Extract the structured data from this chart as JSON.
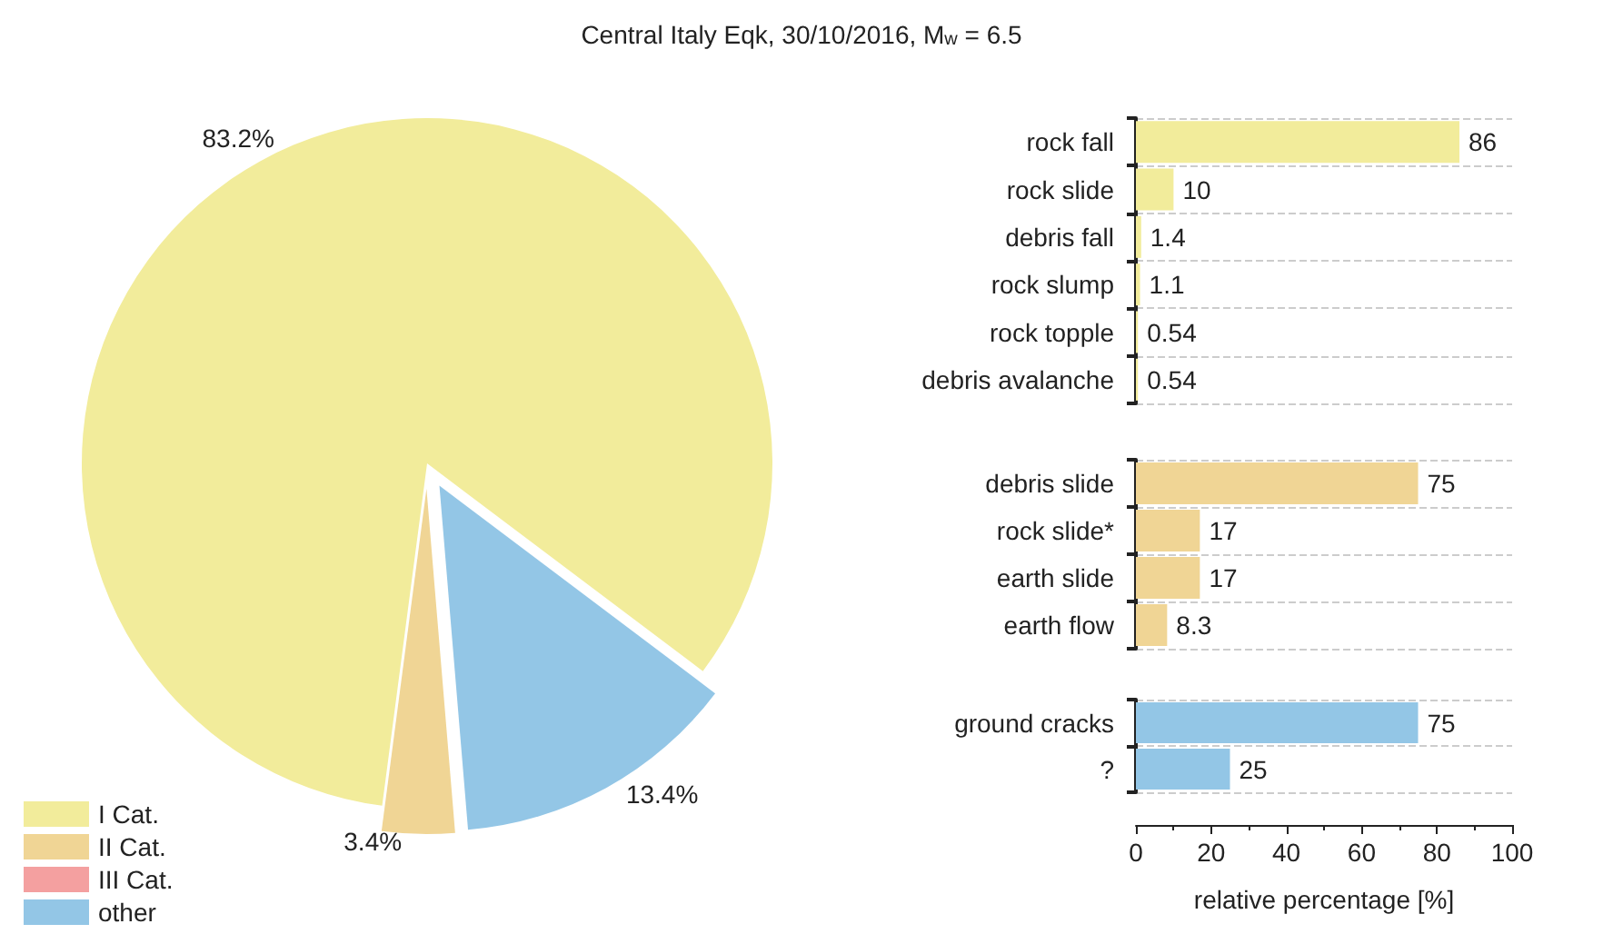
{
  "chart_data": [
    {
      "type": "pie",
      "title": "Central Italy Eqk, 30/10/2016, M$_{w}$ = 6.5",
      "categories": [
        "I Cat.",
        "II Cat.",
        "III Cat.",
        "other"
      ],
      "values": [
        83.2,
        3.4,
        0,
        13.4
      ],
      "colors": [
        "#f2ec9b",
        "#f0d595",
        "#f4a0a0",
        "#93c6e6"
      ],
      "value_labels": [
        "83.2%",
        "3.4%",
        null,
        "13.4%"
      ],
      "legend": "bottom left"
    },
    {
      "type": "bar",
      "orientation": "horizontal",
      "categories": [
        "rock fall",
        "rock slide",
        "debris fall",
        "rock slump",
        "rock topple",
        "debris avalanche"
      ],
      "values": [
        86,
        10,
        1.4,
        1.1,
        0.54,
        0.54
      ],
      "color": "#f2ec9b",
      "xlim": [
        0,
        100
      ],
      "xticks": [
        0,
        20,
        40,
        60,
        80,
        100
      ],
      "data_labels": true,
      "tick_labels": "y",
      "grid": "y"
    },
    {
      "type": "bar",
      "orientation": "horizontal",
      "categories": [
        "debris slide",
        "rock slide*",
        "earth slide",
        "earth flow"
      ],
      "values": [
        75,
        17,
        17,
        8.3
      ],
      "color": "#f0d595",
      "xlim": [
        0,
        100
      ],
      "xticks": [
        0,
        20,
        40,
        60,
        80,
        100
      ],
      "data_labels": true,
      "tick_labels": "y",
      "grid": "y"
    },
    {
      "type": "bar",
      "orientation": "horizontal",
      "categories": [
        "ground cracks",
        "?"
      ],
      "values": [
        75,
        25
      ],
      "color": "#93c6e6",
      "xlim": [
        0,
        100
      ],
      "xticks": [
        0,
        20,
        40,
        60,
        80,
        100
      ],
      "data_labels": true,
      "grid": "y",
      "xlabel": "relative percentage [%]"
    }
  ]
}
